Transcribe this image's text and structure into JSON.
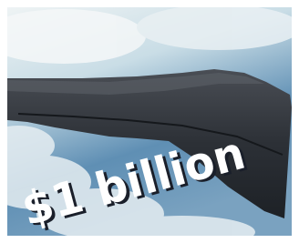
{
  "caption": "$1 billion"
}
